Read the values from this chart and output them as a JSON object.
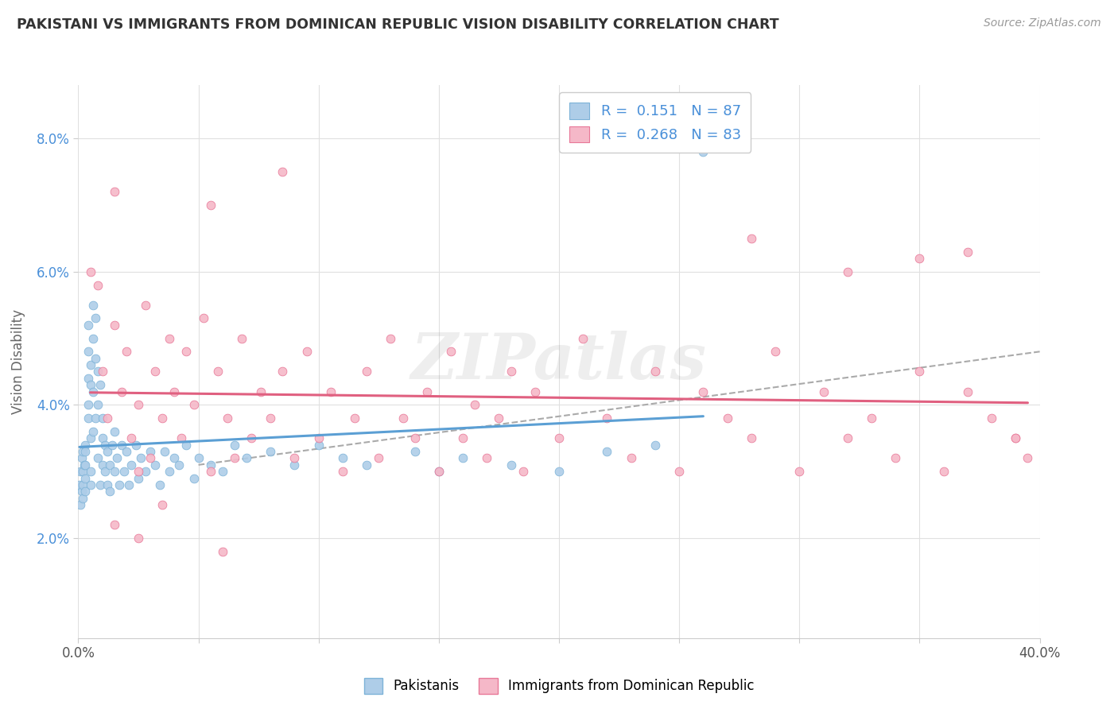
{
  "title": "PAKISTANI VS IMMIGRANTS FROM DOMINICAN REPUBLIC VISION DISABILITY CORRELATION CHART",
  "source_text": "Source: ZipAtlas.com",
  "ylabel": "Vision Disability",
  "xlim": [
    0.0,
    0.4
  ],
  "ylim": [
    0.005,
    0.088
  ],
  "xticks": [
    0.0,
    0.05,
    0.1,
    0.15,
    0.2,
    0.25,
    0.3,
    0.35,
    0.4
  ],
  "yticks": [
    0.02,
    0.04,
    0.06,
    0.08
  ],
  "ytick_labels": [
    "2.0%",
    "4.0%",
    "6.0%",
    "8.0%"
  ],
  "xtick_labels": [
    "0.0%",
    "",
    "",
    "",
    "",
    "",
    "",
    "",
    "40.0%"
  ],
  "legend_R1": "0.151",
  "legend_N1": "87",
  "legend_R2": "0.268",
  "legend_N2": "83",
  "color_blue": "#aecde8",
  "color_pink": "#f5b8c8",
  "color_blue_edge": "#7db3d8",
  "color_pink_edge": "#e87898",
  "color_trend_blue": "#5b9fd4",
  "color_trend_pink": "#e06080",
  "color_trend_dash": "#aaaaaa",
  "watermark": "ZIPatlas",
  "pak_x": [
    0.0005,
    0.001,
    0.001,
    0.0015,
    0.0015,
    0.002,
    0.002,
    0.002,
    0.002,
    0.0025,
    0.003,
    0.003,
    0.003,
    0.003,
    0.003,
    0.004,
    0.004,
    0.004,
    0.004,
    0.004,
    0.005,
    0.005,
    0.005,
    0.005,
    0.005,
    0.006,
    0.006,
    0.006,
    0.006,
    0.007,
    0.007,
    0.007,
    0.008,
    0.008,
    0.008,
    0.009,
    0.009,
    0.01,
    0.01,
    0.01,
    0.011,
    0.011,
    0.012,
    0.012,
    0.013,
    0.013,
    0.014,
    0.015,
    0.015,
    0.016,
    0.017,
    0.018,
    0.019,
    0.02,
    0.021,
    0.022,
    0.024,
    0.025,
    0.026,
    0.028,
    0.03,
    0.032,
    0.034,
    0.036,
    0.038,
    0.04,
    0.042,
    0.045,
    0.048,
    0.05,
    0.055,
    0.06,
    0.065,
    0.07,
    0.08,
    0.09,
    0.1,
    0.11,
    0.12,
    0.14,
    0.15,
    0.16,
    0.18,
    0.2,
    0.22,
    0.24,
    0.26
  ],
  "pak_y": [
    0.028,
    0.03,
    0.025,
    0.032,
    0.027,
    0.03,
    0.026,
    0.033,
    0.028,
    0.031,
    0.034,
    0.029,
    0.027,
    0.031,
    0.033,
    0.04,
    0.044,
    0.048,
    0.052,
    0.038,
    0.043,
    0.046,
    0.035,
    0.03,
    0.028,
    0.05,
    0.055,
    0.042,
    0.036,
    0.053,
    0.047,
    0.038,
    0.045,
    0.04,
    0.032,
    0.043,
    0.028,
    0.035,
    0.031,
    0.038,
    0.03,
    0.034,
    0.028,
    0.033,
    0.031,
    0.027,
    0.034,
    0.03,
    0.036,
    0.032,
    0.028,
    0.034,
    0.03,
    0.033,
    0.028,
    0.031,
    0.034,
    0.029,
    0.032,
    0.03,
    0.033,
    0.031,
    0.028,
    0.033,
    0.03,
    0.032,
    0.031,
    0.034,
    0.029,
    0.032,
    0.031,
    0.03,
    0.034,
    0.032,
    0.033,
    0.031,
    0.034,
    0.032,
    0.031,
    0.033,
    0.03,
    0.032,
    0.031,
    0.03,
    0.033,
    0.034,
    0.078
  ],
  "dom_x": [
    0.005,
    0.008,
    0.01,
    0.012,
    0.015,
    0.018,
    0.02,
    0.022,
    0.025,
    0.028,
    0.03,
    0.032,
    0.035,
    0.038,
    0.04,
    0.043,
    0.045,
    0.048,
    0.052,
    0.055,
    0.058,
    0.062,
    0.065,
    0.068,
    0.072,
    0.076,
    0.08,
    0.085,
    0.09,
    0.095,
    0.1,
    0.105,
    0.11,
    0.115,
    0.12,
    0.125,
    0.13,
    0.135,
    0.14,
    0.145,
    0.15,
    0.155,
    0.16,
    0.165,
    0.17,
    0.175,
    0.18,
    0.185,
    0.19,
    0.2,
    0.21,
    0.22,
    0.23,
    0.24,
    0.25,
    0.26,
    0.27,
    0.28,
    0.29,
    0.3,
    0.31,
    0.32,
    0.33,
    0.34,
    0.35,
    0.36,
    0.37,
    0.38,
    0.39,
    0.395,
    0.015,
    0.025,
    0.035,
    0.055,
    0.28,
    0.32,
    0.35,
    0.37,
    0.39,
    0.015,
    0.025,
    0.06,
    0.085
  ],
  "dom_y": [
    0.06,
    0.058,
    0.045,
    0.038,
    0.052,
    0.042,
    0.048,
    0.035,
    0.04,
    0.055,
    0.032,
    0.045,
    0.038,
    0.05,
    0.042,
    0.035,
    0.048,
    0.04,
    0.053,
    0.03,
    0.045,
    0.038,
    0.032,
    0.05,
    0.035,
    0.042,
    0.038,
    0.045,
    0.032,
    0.048,
    0.035,
    0.042,
    0.03,
    0.038,
    0.045,
    0.032,
    0.05,
    0.038,
    0.035,
    0.042,
    0.03,
    0.048,
    0.035,
    0.04,
    0.032,
    0.038,
    0.045,
    0.03,
    0.042,
    0.035,
    0.05,
    0.038,
    0.032,
    0.045,
    0.03,
    0.042,
    0.038,
    0.035,
    0.048,
    0.03,
    0.042,
    0.035,
    0.038,
    0.032,
    0.045,
    0.03,
    0.042,
    0.038,
    0.035,
    0.032,
    0.072,
    0.03,
    0.025,
    0.07,
    0.065,
    0.06,
    0.062,
    0.063,
    0.035,
    0.022,
    0.02,
    0.018,
    0.075
  ]
}
